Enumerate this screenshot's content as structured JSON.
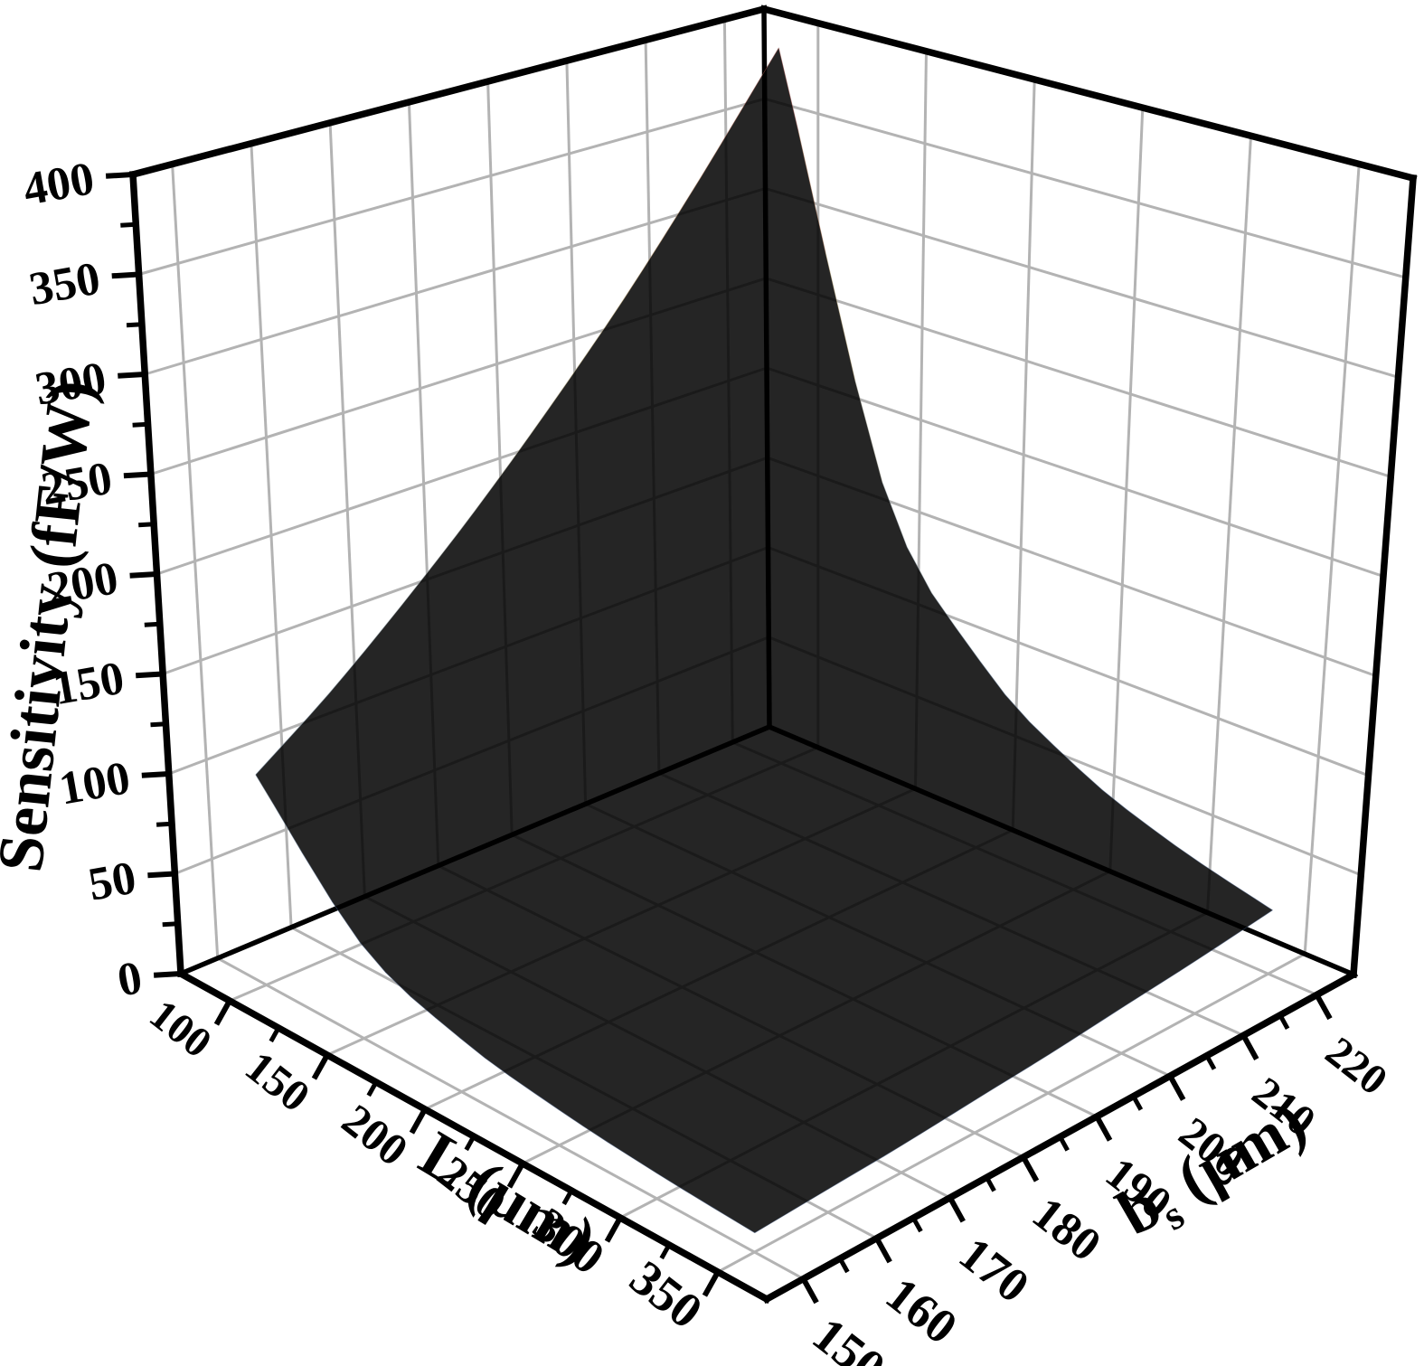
{
  "page": {
    "background": "#ffffff"
  },
  "chart_data": {
    "type": "surface3d",
    "title": "",
    "x_axis": {
      "name": "L",
      "label": "L (μm)",
      "range": [
        75,
        375
      ],
      "major_ticks": [
        100,
        150,
        200,
        250,
        300,
        350
      ],
      "minor_tick_step": 25
    },
    "y_axis": {
      "name": "b_s",
      "label": "b_s (μm)",
      "label_base": "b",
      "label_subscript": "s",
      "label_unit": "(μm)",
      "range": [
        145,
        225
      ],
      "major_ticks": [
        150,
        160,
        170,
        180,
        190,
        200,
        210,
        220
      ],
      "minor_tick_step": 5
    },
    "z_axis": {
      "name": "Sensitivity",
      "label": "Sensitivity (fF/W)",
      "range": [
        0,
        400
      ],
      "major_ticks": [
        0,
        50,
        100,
        150,
        200,
        250,
        300,
        350,
        400
      ],
      "minor_tick_step": 25
    },
    "surface": {
      "L_values": [
        100,
        150,
        200,
        250,
        300,
        350
      ],
      "b_values": [
        150,
        160,
        170,
        180,
        190,
        200,
        210,
        220
      ],
      "sensitivity_grid": [
        [
          105,
          131,
          162,
          197,
          237,
          282,
          334,
          392
        ],
        [
          47,
          58,
          72,
          87,
          105,
          126,
          149,
          174
        ],
        [
          26,
          33,
          40,
          49,
          59,
          71,
          84,
          98
        ],
        [
          17,
          21,
          26,
          31,
          38,
          45,
          53,
          63
        ],
        [
          12,
          15,
          18,
          22,
          26,
          31,
          37,
          44
        ],
        [
          9,
          11,
          13,
          16,
          19,
          23,
          27,
          32
        ]
      ],
      "min": 9,
      "max": 392
    },
    "colormap": [
      [
        0.0,
        "#53719f"
      ],
      [
        0.05,
        "#5a77ab"
      ],
      [
        0.13,
        "#6484b6"
      ],
      [
        0.2,
        "#7d9dc8"
      ],
      [
        0.26,
        "#9cb9d3"
      ],
      [
        0.33,
        "#c2dae6"
      ],
      [
        0.4,
        "#dcebf0"
      ],
      [
        0.475,
        "#edefe0"
      ],
      [
        0.55,
        "#f2e4b4"
      ],
      [
        0.65,
        "#f0d392"
      ],
      [
        0.75,
        "#e8ae7a"
      ],
      [
        0.85,
        "#d97f66"
      ],
      [
        0.93,
        "#c95f5c"
      ],
      [
        1.0,
        "#bc4b53"
      ]
    ],
    "surface_opacity": 0.85,
    "style": {
      "axis_color": "#000000",
      "grid_color": "#b3b3b3",
      "background": "#ffffff"
    }
  }
}
